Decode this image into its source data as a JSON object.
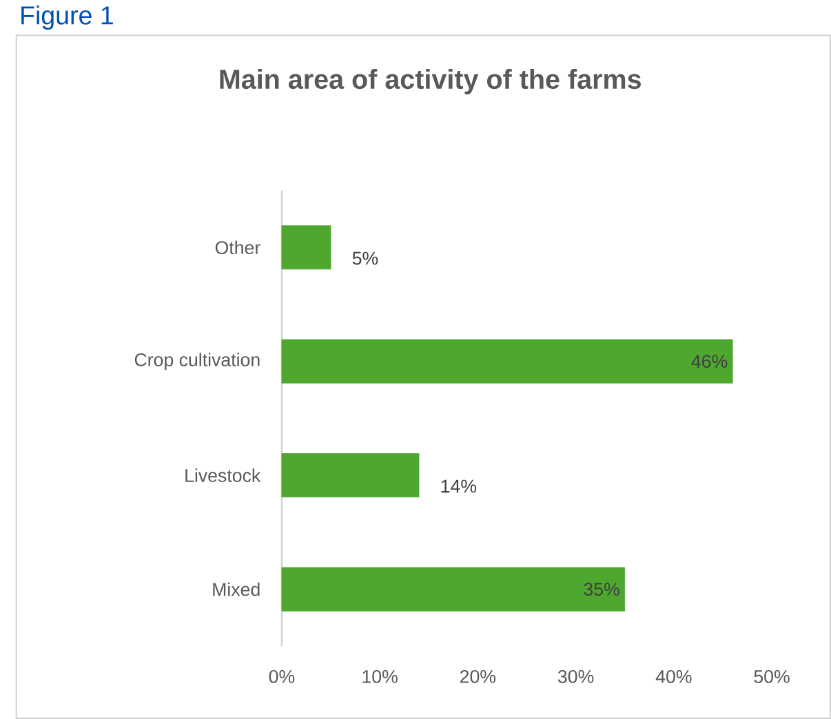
{
  "chart_data": {
    "type": "bar",
    "orientation": "horizontal",
    "title": "Main area of activity of the farms",
    "annotations": [
      "Figure 1"
    ],
    "categories": [
      "Other",
      "Crop cultivation",
      "Livestock",
      "Mixed"
    ],
    "values": [
      5,
      46,
      14,
      35
    ],
    "value_labels": [
      "5%",
      "46%",
      "14%",
      "35%"
    ],
    "color": "#4ea72e",
    "xlim": [
      0,
      50
    ],
    "xticks": [
      {
        "value": 0,
        "label": "0%"
      },
      {
        "value": 10,
        "label": "10%"
      },
      {
        "value": 20,
        "label": "20%"
      },
      {
        "value": 30,
        "label": "30%"
      },
      {
        "value": 40,
        "label": "40%"
      },
      {
        "value": 50,
        "label": "50%"
      }
    ]
  }
}
